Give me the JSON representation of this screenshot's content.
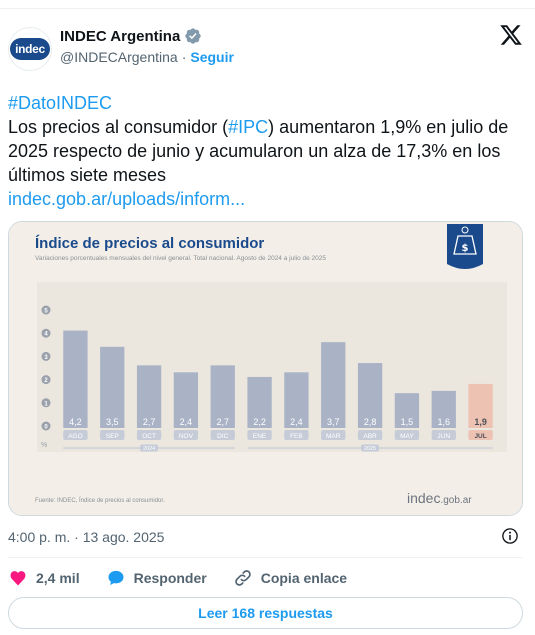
{
  "author": {
    "name": "INDEC Argentina",
    "handle": "@INDECArgentina",
    "separator": "·",
    "follow_label": "Seguir",
    "avatar_text": "indec"
  },
  "tweet": {
    "hashtag_line": "#DatoINDEC",
    "text_before": "Los precios al consumidor (",
    "ipc_tag": "#IPC",
    "text_after": ") aumentaron 1,9% en julio de 2025 respecto de junio y acumularon un alza de 17,3% en los últimos siete meses",
    "link": "indec.gob.ar/uploads/inform..."
  },
  "timestamp": "4:00 p. m. · 13 ago. 2025",
  "actions": {
    "likes": "2,4 mil",
    "reply_label": "Responder",
    "copy_label": "Copia enlace"
  },
  "replies_button": "Leer 168 respuestas",
  "colors": {
    "accent": "#1d9bf0",
    "like": "#f91880",
    "bar": "#a9b3c5",
    "bar_highlight": "#eec2b3",
    "chart_bg": "#f3efe8",
    "chart_title": "#1a4a8c"
  },
  "chart_data": {
    "type": "bar",
    "title": "Índice de precios al consumidor",
    "subtitle": "Variaciones porcentuales mensuales del nivel general. Total nacional. Agosto de 2024 a julio de 2025",
    "ylabel": "%",
    "ylim": [
      0,
      5
    ],
    "yticks": [
      "0",
      "1",
      "2",
      "3",
      "4",
      "5"
    ],
    "categories": [
      "AGO",
      "SEP",
      "OCT",
      "NOV",
      "DIC",
      "ENE",
      "FEB",
      "MAR",
      "ABR",
      "MAY",
      "JUN",
      "JUL"
    ],
    "values": [
      4.2,
      3.5,
      2.7,
      2.4,
      2.7,
      2.2,
      2.4,
      3.7,
      2.8,
      1.5,
      1.6,
      1.9
    ],
    "labels": [
      "4,2",
      "3,5",
      "2,7",
      "2,4",
      "2,7",
      "2,2",
      "2,4",
      "3,7",
      "2,8",
      "1,5",
      "1,6",
      "1,9"
    ],
    "highlight_index": 11,
    "year_groups": [
      {
        "label": "2024",
        "from": 0,
        "to": 4
      },
      {
        "label": "2025",
        "from": 5,
        "to": 11
      }
    ],
    "source": "Fuente: INDEC, Índice de precios al consumidor.",
    "brand_main": "indec",
    "brand_suffix": ".gob.ar"
  }
}
